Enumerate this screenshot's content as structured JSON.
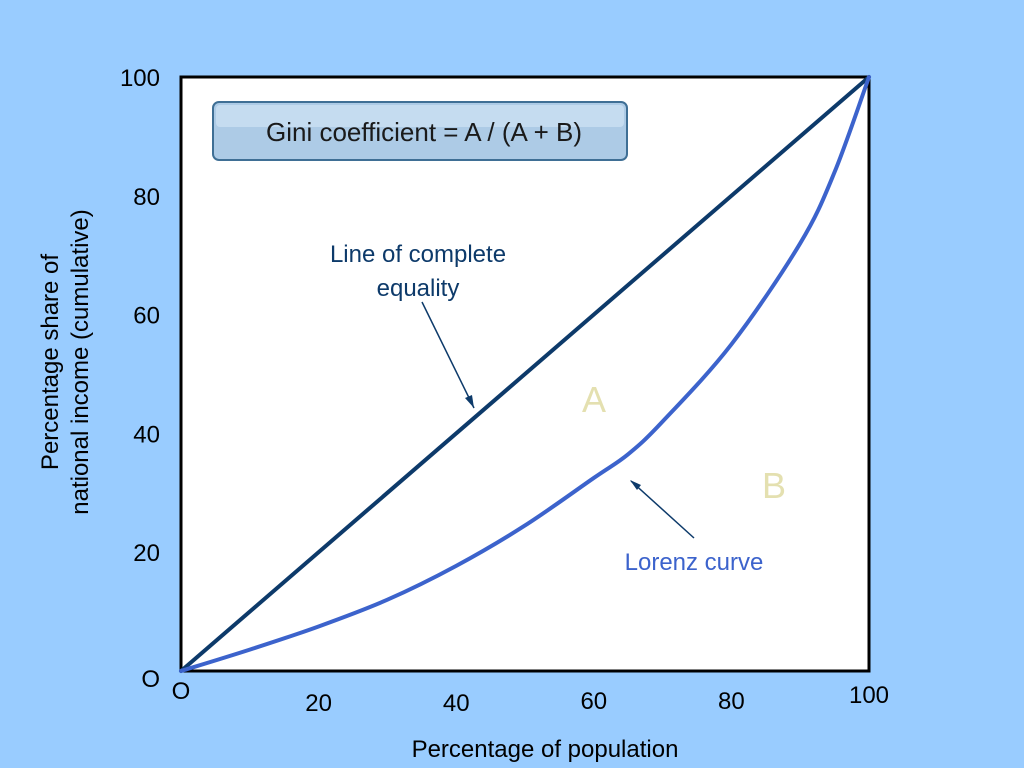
{
  "chart_data": {
    "type": "line",
    "xlabel": "Percentage of population",
    "ylabel_lines": [
      "Percentage share of",
      "national income (cumulative)"
    ],
    "xlim": [
      0,
      100
    ],
    "ylim": [
      0,
      100
    ],
    "x_ticks": [
      {
        "value": 0,
        "label": "O"
      },
      {
        "value": 20,
        "label": "20"
      },
      {
        "value": 40,
        "label": "40"
      },
      {
        "value": 60,
        "label": "60"
      },
      {
        "value": 80,
        "label": "80"
      },
      {
        "value": 100,
        "label": "100"
      }
    ],
    "y_ticks": [
      {
        "value": 0,
        "label": "O"
      },
      {
        "value": 20,
        "label": "20"
      },
      {
        "value": 40,
        "label": "40"
      },
      {
        "value": 60,
        "label": "60"
      },
      {
        "value": 80,
        "label": "80"
      },
      {
        "value": 100,
        "label": "100"
      }
    ],
    "grid": false,
    "series": [
      {
        "name": "Line of complete equality",
        "color": "#0d3a6a",
        "x": [
          0,
          100
        ],
        "y": [
          0,
          100
        ]
      },
      {
        "name": "Lorenz curve",
        "color": "#3c63cc",
        "x": [
          0,
          10,
          20,
          30,
          40,
          50,
          60,
          65,
          70,
          80,
          90,
          95,
          100
        ],
        "y": [
          0,
          3.6,
          7.5,
          12,
          17.7,
          24.5,
          32.5,
          36.5,
          42,
          55,
          72,
          84,
          100
        ]
      }
    ],
    "annotations": {
      "formula": "Gini coefficient = A / (A + B)",
      "equality_label_lines": [
        "Line of complete",
        "equality"
      ],
      "lorenz_label": "Lorenz curve",
      "region_a": "A",
      "region_b": "B"
    }
  }
}
